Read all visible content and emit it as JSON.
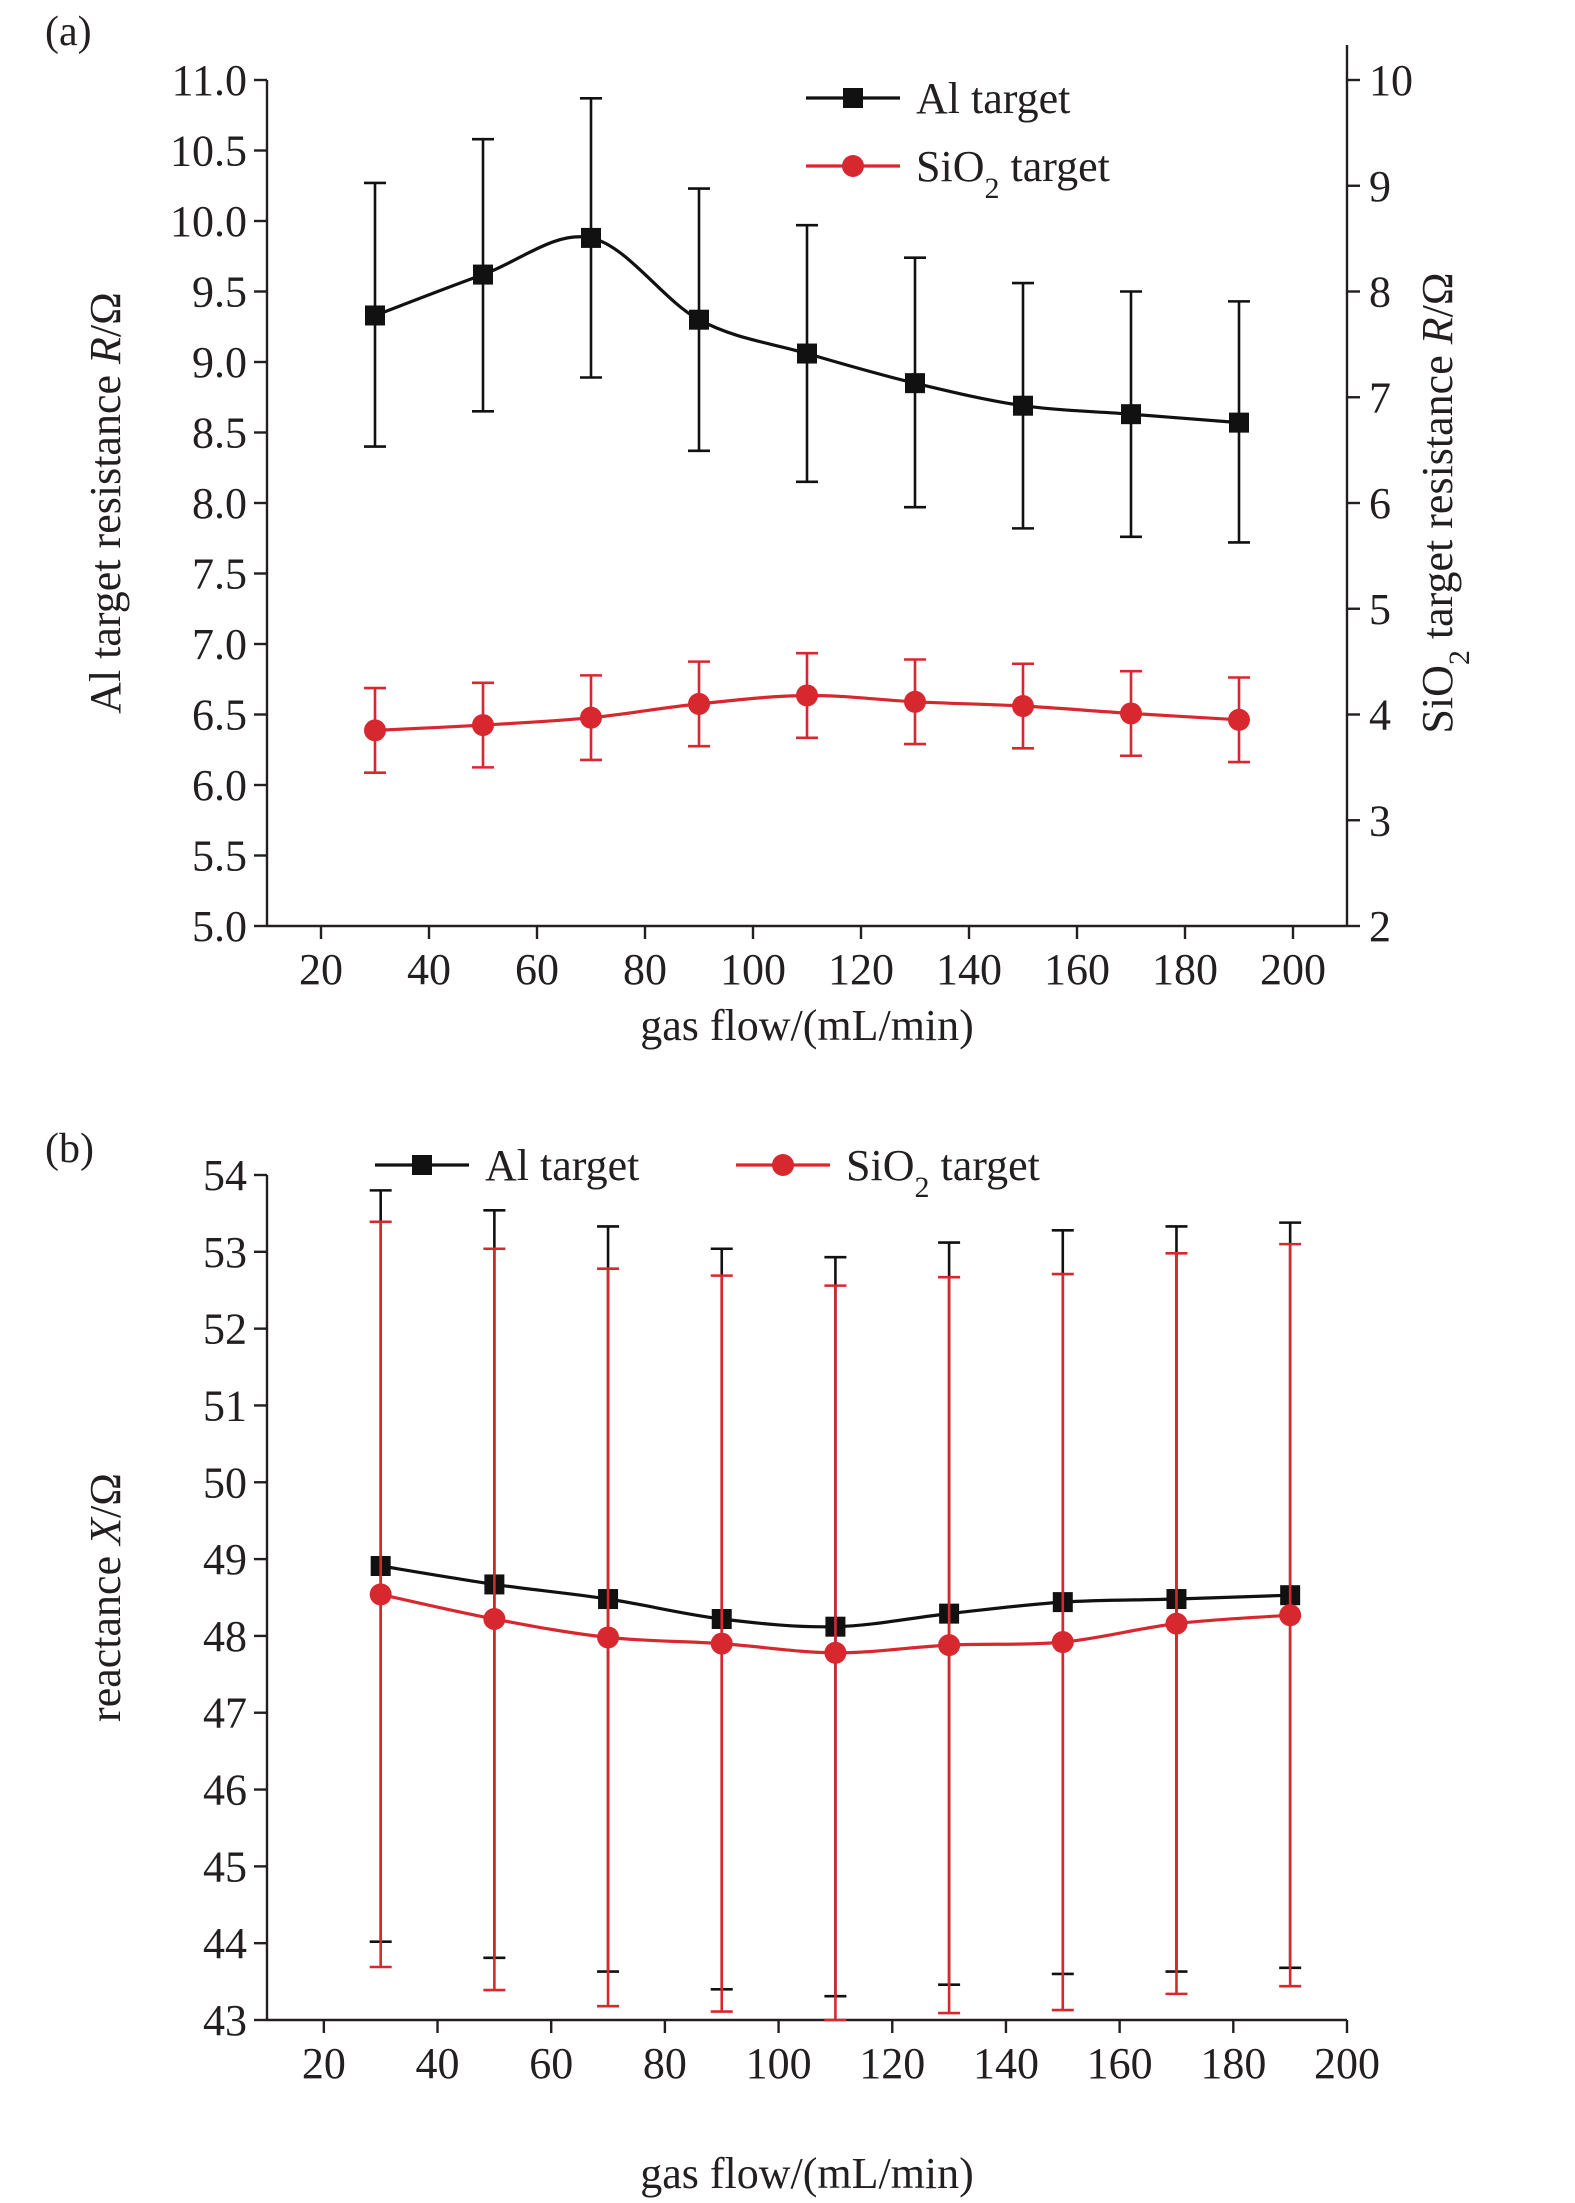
{
  "chart_data": [
    {
      "panel_label": "(a)",
      "type": "line",
      "xlabel": "gas flow/(mL/min)",
      "ylabel_prefix": "Al target resistance ",
      "ylabel_var": "R",
      "ylabel_suffix": "/Ω",
      "y2label_prefix": "SiO",
      "y2label_sub": "2",
      "y2label_mid": " target resistance ",
      "y2label_var": "R",
      "y2label_suffix": "/Ω",
      "xlim": [
        10,
        210
      ],
      "ylim": [
        5.0,
        11.0
      ],
      "y2lim": [
        2,
        10
      ],
      "x_ticks": [
        20,
        40,
        60,
        80,
        100,
        120,
        140,
        160,
        180,
        200
      ],
      "x_tick_labels": [
        "20",
        "40",
        "60",
        "80",
        "100",
        "120",
        "140",
        "160",
        "180",
        "200"
      ],
      "y_ticks": [
        5.0,
        5.5,
        6.0,
        6.5,
        7.0,
        7.5,
        8.0,
        8.5,
        9.0,
        9.5,
        10.0,
        10.5,
        11.0
      ],
      "y_tick_labels": [
        "5.0",
        "5.5",
        "6.0",
        "6.5",
        "7.0",
        "7.5",
        "8.0",
        "8.5",
        "9.0",
        "9.5",
        "10.0",
        "10.5",
        "11.0"
      ],
      "y2_ticks": [
        2,
        3,
        4,
        5,
        6,
        7,
        8,
        9,
        10
      ],
      "y2_tick_labels": [
        "2",
        "3",
        "4",
        "5",
        "6",
        "7",
        "8",
        "9",
        "10"
      ],
      "legend_position": "top-right",
      "x": [
        30,
        50,
        70,
        90,
        110,
        130,
        150,
        170,
        190
      ],
      "series": [
        {
          "name": "Al target",
          "name_parts": [
            "Al target"
          ],
          "axis": "left",
          "marker": "square",
          "color": "#111111",
          "values": [
            9.33,
            9.62,
            9.88,
            9.3,
            9.06,
            8.85,
            8.69,
            8.63,
            8.57
          ],
          "err_low": [
            8.4,
            8.65,
            8.89,
            8.37,
            8.15,
            7.97,
            7.82,
            7.76,
            7.72
          ],
          "err_high": [
            10.27,
            10.58,
            10.87,
            10.23,
            9.97,
            9.74,
            9.56,
            9.5,
            9.43
          ]
        },
        {
          "name": "SiO2 target",
          "name_parts": [
            "SiO",
            "2",
            " target"
          ],
          "axis": "right",
          "marker": "circle",
          "color": "#d7282f",
          "values": [
            3.85,
            3.9,
            3.97,
            4.1,
            4.18,
            4.12,
            4.08,
            4.01,
            3.95
          ],
          "err_low": [
            3.45,
            3.5,
            3.57,
            3.7,
            3.78,
            3.72,
            3.68,
            3.61,
            3.55
          ],
          "err_high": [
            4.25,
            4.3,
            4.37,
            4.5,
            4.58,
            4.52,
            4.48,
            4.41,
            4.35
          ]
        }
      ]
    },
    {
      "panel_label": "(b)",
      "type": "line",
      "xlabel": "gas flow/(mL/min)",
      "ylabel_prefix": "reactance ",
      "ylabel_var": "X",
      "ylabel_suffix": "/Ω",
      "xlim": [
        10,
        200
      ],
      "ylim": [
        43,
        54
      ],
      "x_ticks": [
        20,
        40,
        60,
        80,
        100,
        120,
        140,
        160,
        180,
        200
      ],
      "x_tick_labels": [
        "20",
        "40",
        "60",
        "80",
        "100",
        "120",
        "140",
        "160",
        "180",
        "200"
      ],
      "y_ticks": [
        43,
        44,
        45,
        46,
        47,
        48,
        49,
        50,
        51,
        52,
        53,
        54
      ],
      "y_tick_labels": [
        "43",
        "44",
        "45",
        "46",
        "47",
        "48",
        "49",
        "50",
        "51",
        "52",
        "53",
        "54"
      ],
      "legend_position": "top-center",
      "x": [
        30,
        50,
        70,
        90,
        110,
        130,
        150,
        170,
        190
      ],
      "series": [
        {
          "name": "Al target",
          "name_parts": [
            "Al target"
          ],
          "axis": "left",
          "marker": "square",
          "color": "#111111",
          "values": [
            48.91,
            48.67,
            48.48,
            48.22,
            48.12,
            48.29,
            48.44,
            48.48,
            48.53
          ],
          "err_low": [
            44.02,
            43.81,
            43.63,
            43.4,
            43.31,
            43.46,
            43.6,
            43.63,
            43.68
          ],
          "err_high": [
            53.8,
            53.54,
            53.33,
            53.04,
            52.93,
            53.12,
            53.28,
            53.33,
            53.38
          ]
        },
        {
          "name": "SiO2 target",
          "name_parts": [
            "SiO",
            "2",
            " target"
          ],
          "axis": "left",
          "marker": "circle",
          "color": "#d7282f",
          "values": [
            48.54,
            48.22,
            47.98,
            47.9,
            47.78,
            47.88,
            47.92,
            48.16,
            48.27
          ],
          "err_low": [
            43.69,
            43.39,
            43.18,
            43.11,
            43.0,
            43.09,
            43.13,
            43.34,
            43.44
          ],
          "err_high": [
            53.39,
            53.04,
            52.78,
            52.69,
            52.56,
            52.67,
            52.71,
            52.98,
            53.1
          ]
        }
      ]
    }
  ]
}
